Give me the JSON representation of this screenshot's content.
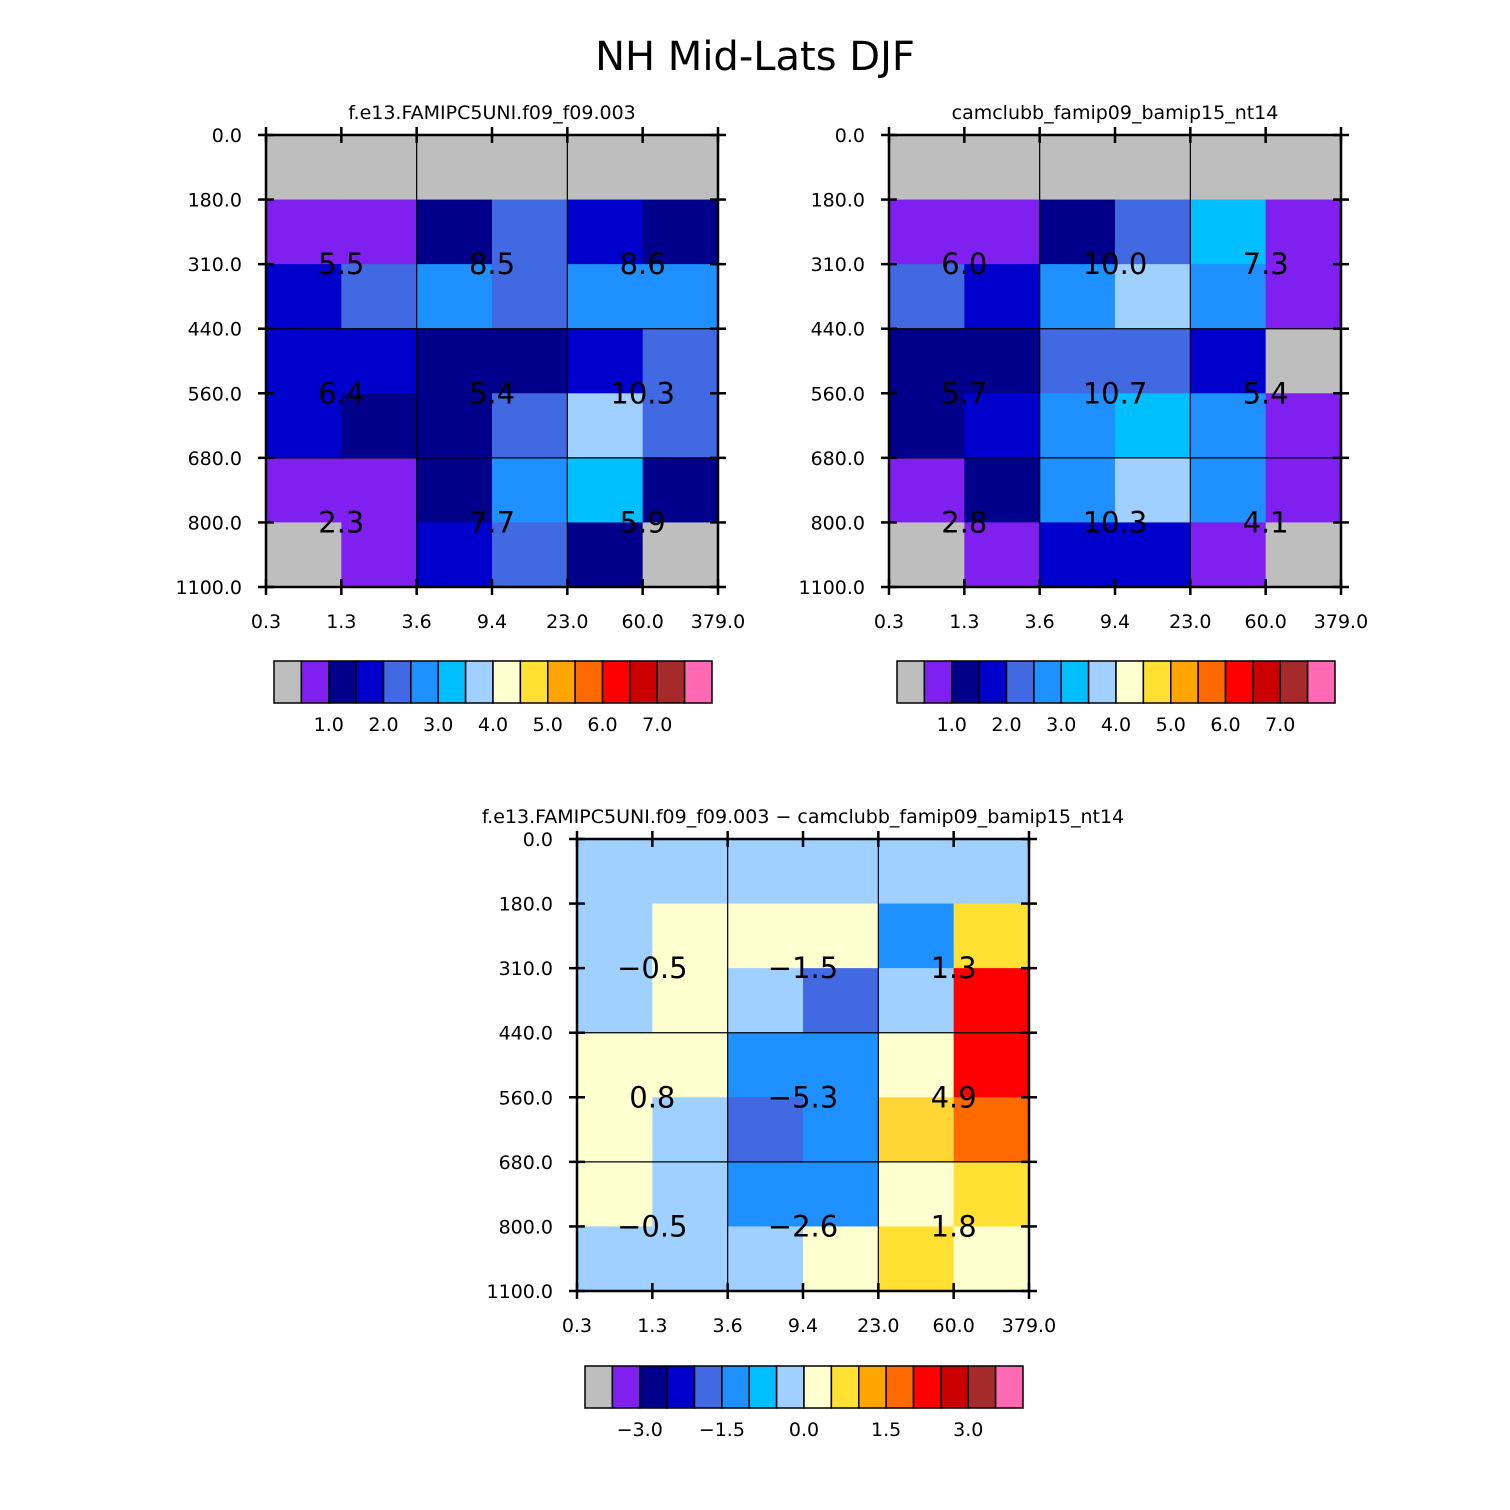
{
  "figure": {
    "title": "NH Mid-Lats DJF"
  },
  "chart_data": [
    {
      "type": "heatmap",
      "title": "f.e13.FAMIPC5UNI.f09_f09.003",
      "x_ticks": [
        "0.3",
        "1.3",
        "3.6",
        "9.4",
        "23.0",
        "60.0",
        "379.0"
      ],
      "y_ticks": [
        "0.0",
        "180.0",
        "310.0",
        "440.0",
        "560.0",
        "680.0",
        "800.0",
        "1100.0"
      ],
      "cell_colors": [
        [
          "#bebebe",
          "#bebebe",
          "#bebebe",
          "#bebebe",
          "#bebebe",
          "#bebebe"
        ],
        [
          "#8020f0",
          "#8020f0",
          "#00008b",
          "#4169e1",
          "#0000cd",
          "#00008b"
        ],
        [
          "#0000cd",
          "#4169e1",
          "#1e90ff",
          "#4169e1",
          "#1e90ff",
          "#1e90ff"
        ],
        [
          "#0000cd",
          "#0000cd",
          "#00008b",
          "#00008b",
          "#0000cd",
          "#4169e1"
        ],
        [
          "#0000cd",
          "#00008b",
          "#00008b",
          "#4169e1",
          "#a0d0ff",
          "#4169e1"
        ],
        [
          "#8020f0",
          "#8020f0",
          "#00008b",
          "#1e90ff",
          "#00bfff",
          "#00008b"
        ],
        [
          "#bebebe",
          "#8020f0",
          "#0000cd",
          "#4169e1",
          "#00008b",
          "#bebebe"
        ]
      ],
      "group_values": [
        [
          "",
          "",
          ""
        ],
        [
          "5.5",
          "8.5",
          "8.6"
        ],
        [
          "6.4",
          "5.4",
          "10.3"
        ],
        [
          "2.3",
          "7.7",
          "5.9"
        ]
      ],
      "colorbar": {
        "colors": [
          "#bebebe",
          "#8020f0",
          "#00008b",
          "#0000cd",
          "#4169e1",
          "#1e90ff",
          "#00bfff",
          "#a0d0ff",
          "#ffffd0",
          "#ffe033",
          "#ffa500",
          "#ff6a00",
          "#ff0000",
          "#cd0000",
          "#a52a2a",
          "#ff69b4"
        ],
        "labels": [
          "1.0",
          "2.0",
          "3.0",
          "4.0",
          "5.0",
          "6.0",
          "7.0"
        ]
      }
    },
    {
      "type": "heatmap",
      "title": "camclubb_famip09_bamip15_nt14",
      "x_ticks": [
        "0.3",
        "1.3",
        "3.6",
        "9.4",
        "23.0",
        "60.0",
        "379.0"
      ],
      "y_ticks": [
        "0.0",
        "180.0",
        "310.0",
        "440.0",
        "560.0",
        "680.0",
        "800.0",
        "1100.0"
      ],
      "cell_colors": [
        [
          "#bebebe",
          "#bebebe",
          "#bebebe",
          "#bebebe",
          "#bebebe",
          "#bebebe"
        ],
        [
          "#8020f0",
          "#8020f0",
          "#00008b",
          "#4169e1",
          "#00bfff",
          "#8020f0"
        ],
        [
          "#4169e1",
          "#0000cd",
          "#1e90ff",
          "#a0d0ff",
          "#1e90ff",
          "#8020f0"
        ],
        [
          "#00008b",
          "#00008b",
          "#4169e1",
          "#4169e1",
          "#0000cd",
          "#bebebe"
        ],
        [
          "#00008b",
          "#0000cd",
          "#1e90ff",
          "#00bfff",
          "#1e90ff",
          "#8020f0"
        ],
        [
          "#8020f0",
          "#00008b",
          "#1e90ff",
          "#a0d0ff",
          "#1e90ff",
          "#8020f0"
        ],
        [
          "#bebebe",
          "#8020f0",
          "#0000cd",
          "#0000cd",
          "#8020f0",
          "#bebebe"
        ]
      ],
      "group_values": [
        [
          "",
          "",
          ""
        ],
        [
          "6.0",
          "10.0",
          "7.3"
        ],
        [
          "5.7",
          "10.7",
          "5.4"
        ],
        [
          "2.8",
          "10.3",
          "4.1"
        ]
      ],
      "colorbar": {
        "colors": [
          "#bebebe",
          "#8020f0",
          "#00008b",
          "#0000cd",
          "#4169e1",
          "#1e90ff",
          "#00bfff",
          "#a0d0ff",
          "#ffffd0",
          "#ffe033",
          "#ffa500",
          "#ff6a00",
          "#ff0000",
          "#cd0000",
          "#a52a2a",
          "#ff69b4"
        ],
        "labels": [
          "1.0",
          "2.0",
          "3.0",
          "4.0",
          "5.0",
          "6.0",
          "7.0"
        ]
      }
    },
    {
      "type": "heatmap",
      "title": "f.e13.FAMIPC5UNI.f09_f09.003 − camclubb_famip09_bamip15_nt14",
      "x_ticks": [
        "0.3",
        "1.3",
        "3.6",
        "9.4",
        "23.0",
        "60.0",
        "379.0"
      ],
      "y_ticks": [
        "0.0",
        "180.0",
        "310.0",
        "440.0",
        "560.0",
        "680.0",
        "800.0",
        "1100.0"
      ],
      "cell_colors": [
        [
          "#a0d0ff",
          "#a0d0ff",
          "#a0d0ff",
          "#a0d0ff",
          "#a0d0ff",
          "#a0d0ff"
        ],
        [
          "#a0d0ff",
          "#ffffd0",
          "#ffffd0",
          "#ffffd0",
          "#1e90ff",
          "#ffe033"
        ],
        [
          "#a0d0ff",
          "#ffffd0",
          "#a0d0ff",
          "#4169e1",
          "#a0d0ff",
          "#ff0000"
        ],
        [
          "#ffffd0",
          "#ffffd0",
          "#1e90ff",
          "#1e90ff",
          "#ffffd0",
          "#ff0000"
        ],
        [
          "#ffffd0",
          "#a0d0ff",
          "#4169e1",
          "#1e90ff",
          "#ffd633",
          "#ff6a00"
        ],
        [
          "#ffffd0",
          "#a0d0ff",
          "#1e90ff",
          "#1e90ff",
          "#ffffd0",
          "#ffe033"
        ],
        [
          "#a0d0ff",
          "#a0d0ff",
          "#a0d0ff",
          "#ffffd0",
          "#ffe033",
          "#ffffd0"
        ]
      ],
      "group_values": [
        [
          "",
          "",
          ""
        ],
        [
          "−0.5",
          "−1.5",
          "1.3"
        ],
        [
          "0.8",
          "−5.3",
          "4.9"
        ],
        [
          "−0.5",
          "−2.6",
          "1.8"
        ]
      ],
      "colorbar": {
        "colors": [
          "#bebebe",
          "#8020f0",
          "#00008b",
          "#0000cd",
          "#4169e1",
          "#1e90ff",
          "#00bfff",
          "#a0d0ff",
          "#ffffd0",
          "#ffe033",
          "#ffa500",
          "#ff6a00",
          "#ff0000",
          "#cd0000",
          "#a52a2a",
          "#ff69b4"
        ],
        "labels": [
          "−3.0",
          "−1.5",
          "0.0",
          "1.5",
          "3.0"
        ]
      }
    }
  ]
}
